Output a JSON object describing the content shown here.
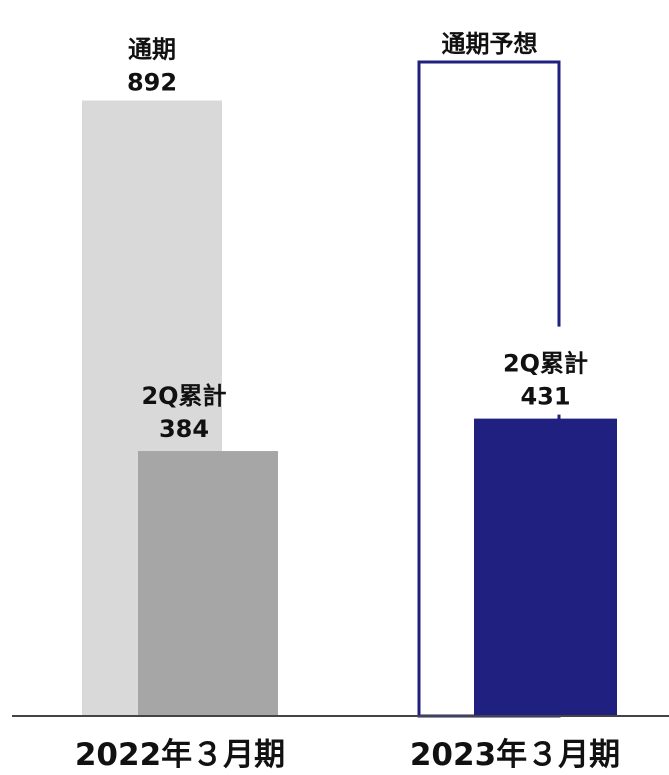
{
  "chart_data": {
    "type": "bar",
    "categories": [
      "2022年３月期",
      "2023年３月期"
    ],
    "ylim": [
      0,
      1000
    ],
    "grid": false,
    "legend": "none",
    "series": [
      {
        "key": "full_year",
        "values": [
          892,
          null
        ],
        "labels": [
          {
            "caption": "通期",
            "value": "892"
          },
          {
            "caption": "通期予想",
            "value": ""
          }
        ],
        "colors": [
          "#d9d9d9",
          "#1f2080"
        ],
        "styles": [
          "filled",
          "outline"
        ]
      },
      {
        "key": "q2_cumulative",
        "values": [
          384,
          431
        ],
        "labels": [
          {
            "caption": "2Q累計",
            "value": "384"
          },
          {
            "caption": "2Q累計",
            "value": "431"
          }
        ],
        "colors": [
          "#a6a6a6",
          "#1f2080"
        ],
        "styles": [
          "filled",
          "filled"
        ]
      }
    ]
  }
}
